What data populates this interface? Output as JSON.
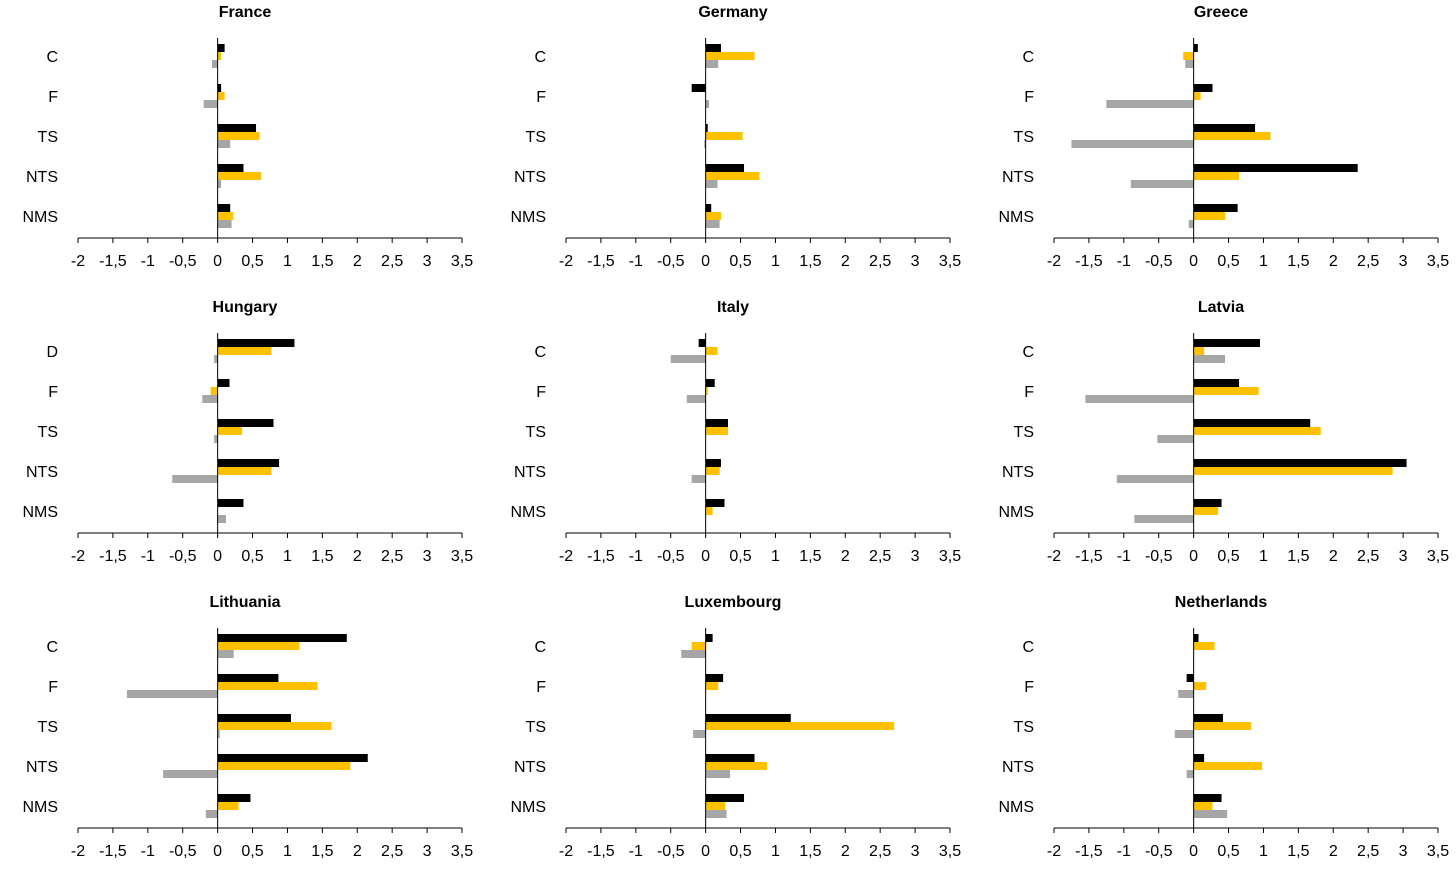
{
  "chart_data": [
    {
      "type": "bar",
      "title": "France",
      "categories": [
        "C",
        "F",
        "TS",
        "NTS",
        "NMS"
      ],
      "xlim": [
        -2,
        3.5
      ],
      "xticks": [
        "-2",
        "-1,5",
        "-1",
        "-0,5",
        "0",
        "0,5",
        "1",
        "1,5",
        "2",
        "2,5",
        "3",
        "3,5"
      ],
      "series": [
        {
          "values": [
            0.1,
            0.05,
            0.55,
            0.37,
            0.18
          ]
        },
        {
          "values": [
            0.05,
            0.1,
            0.6,
            0.62,
            0.22
          ]
        },
        {
          "values": [
            -0.08,
            -0.2,
            0.18,
            0.05,
            0.2
          ]
        }
      ]
    },
    {
      "type": "bar",
      "title": "Germany",
      "categories": [
        "C",
        "F",
        "TS",
        "NTS",
        "NMS"
      ],
      "xlim": [
        -2,
        3.5
      ],
      "xticks": [
        "-2",
        "-1,5",
        "-1",
        "-0,5",
        "0",
        "0,5",
        "1",
        "1,5",
        "2",
        "2,5",
        "3",
        "3,5"
      ],
      "series": [
        {
          "values": [
            0.22,
            -0.2,
            0.03,
            0.55,
            0.08
          ]
        },
        {
          "values": [
            0.7,
            0.0,
            0.53,
            0.77,
            0.22
          ]
        },
        {
          "values": [
            0.18,
            0.05,
            -0.02,
            0.17,
            0.2
          ]
        }
      ]
    },
    {
      "type": "bar",
      "title": "Greece",
      "categories": [
        "C",
        "F",
        "TS",
        "NTS",
        "NMS"
      ],
      "xlim": [
        -2,
        3.5
      ],
      "xticks": [
        "-2",
        "-1,5",
        "-1",
        "-0,5",
        "0",
        "0,5",
        "1",
        "1,5",
        "2",
        "2,5",
        "3",
        "3,5"
      ],
      "series": [
        {
          "values": [
            0.06,
            0.27,
            0.88,
            2.35,
            0.63
          ]
        },
        {
          "values": [
            -0.15,
            0.1,
            1.1,
            0.65,
            0.45
          ]
        },
        {
          "values": [
            -0.12,
            -1.25,
            -1.75,
            -0.9,
            -0.07
          ]
        }
      ]
    },
    {
      "type": "bar",
      "title": "Hungary",
      "categories": [
        "D",
        "F",
        "TS",
        "NTS",
        "NMS"
      ],
      "xlim": [
        -2,
        3.5
      ],
      "xticks": [
        "-2",
        "-1,5",
        "-1",
        "-0,5",
        "0",
        "0,5",
        "1",
        "1,5",
        "2",
        "2,5",
        "3",
        "3,5"
      ],
      "series": [
        {
          "values": [
            1.1,
            0.17,
            0.8,
            0.88,
            0.37
          ]
        },
        {
          "values": [
            0.77,
            -0.1,
            0.35,
            0.77,
            0.0
          ]
        },
        {
          "values": [
            -0.05,
            -0.22,
            -0.05,
            -0.65,
            0.12
          ]
        }
      ]
    },
    {
      "type": "bar",
      "title": "Italy",
      "categories": [
        "C",
        "F",
        "TS",
        "NTS",
        "NMS"
      ],
      "xlim": [
        -2,
        3.5
      ],
      "xticks": [
        "-2",
        "-1,5",
        "-1",
        "-0,5",
        "0",
        "0,5",
        "1",
        "1,5",
        "2",
        "2,5",
        "3",
        "3,5"
      ],
      "series": [
        {
          "values": [
            -0.1,
            0.13,
            0.32,
            0.22,
            0.27
          ]
        },
        {
          "values": [
            0.17,
            0.03,
            0.32,
            0.2,
            0.1
          ]
        },
        {
          "values": [
            -0.5,
            -0.27,
            0.0,
            -0.2,
            0.0
          ]
        }
      ]
    },
    {
      "type": "bar",
      "title": "Latvia",
      "categories": [
        "C",
        "F",
        "TS",
        "NTS",
        "NMS"
      ],
      "xlim": [
        -2,
        3.5
      ],
      "xticks": [
        "-2",
        "-1,5",
        "-1",
        "-0,5",
        "0",
        "0,5",
        "1",
        "1,5",
        "2",
        "2,5",
        "3",
        "3,5"
      ],
      "series": [
        {
          "values": [
            0.95,
            0.65,
            1.67,
            3.05,
            0.4
          ]
        },
        {
          "values": [
            0.15,
            0.93,
            1.82,
            2.85,
            0.35
          ]
        },
        {
          "values": [
            0.45,
            -1.55,
            -0.52,
            -1.1,
            -0.85
          ]
        }
      ]
    },
    {
      "type": "bar",
      "title": "Lithuania",
      "categories": [
        "C",
        "F",
        "TS",
        "NTS",
        "NMS"
      ],
      "xlim": [
        -2,
        3.5
      ],
      "xticks": [
        "-2",
        "-1,5",
        "-1",
        "-0,5",
        "0",
        "0,5",
        "1",
        "1,5",
        "2",
        "2,5",
        "3",
        "3,5"
      ],
      "series": [
        {
          "values": [
            1.85,
            0.87,
            1.05,
            2.15,
            0.47
          ]
        },
        {
          "values": [
            1.17,
            1.43,
            1.63,
            1.9,
            0.3
          ]
        },
        {
          "values": [
            0.23,
            -1.3,
            0.03,
            -0.78,
            -0.17
          ]
        }
      ]
    },
    {
      "type": "bar",
      "title": "Luxembourg",
      "categories": [
        "C",
        "F",
        "TS",
        "NTS",
        "NMS"
      ],
      "xlim": [
        -2,
        3.5
      ],
      "xticks": [
        "-2",
        "-1,5",
        "-1",
        "-0,5",
        "0",
        "0,5",
        "1",
        "1,5",
        "2",
        "2,5",
        "3",
        "3,5"
      ],
      "series": [
        {
          "values": [
            0.1,
            0.25,
            1.22,
            0.7,
            0.55
          ]
        },
        {
          "values": [
            -0.2,
            0.18,
            2.7,
            0.88,
            0.28
          ]
        },
        {
          "values": [
            -0.35,
            0.0,
            -0.18,
            0.35,
            0.3
          ]
        }
      ]
    },
    {
      "type": "bar",
      "title": "Netherlands",
      "categories": [
        "C",
        "F",
        "TS",
        "NTS",
        "NMS"
      ],
      "xlim": [
        -2,
        3.5
      ],
      "xticks": [
        "-2",
        "-1,5",
        "-1",
        "-0,5",
        "0",
        "0,5",
        "1",
        "1,5",
        "2",
        "2,5",
        "3",
        "3,5"
      ],
      "series": [
        {
          "values": [
            0.07,
            -0.1,
            0.42,
            0.15,
            0.4
          ]
        },
        {
          "values": [
            0.3,
            0.18,
            0.82,
            0.98,
            0.27
          ]
        },
        {
          "values": [
            0.0,
            -0.22,
            -0.27,
            -0.1,
            0.48
          ]
        }
      ]
    }
  ],
  "colors": {
    "series": [
      "#000000",
      "#ffc000",
      "#a6a6a6"
    ],
    "axis": "#000000"
  }
}
